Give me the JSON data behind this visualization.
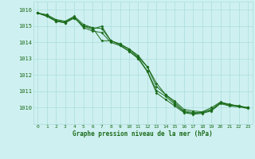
{
  "xlabel": "Graphe pression niveau de la mer (hPa)",
  "background_color": "#cff0f0",
  "grid_color": "#aadddd",
  "line_color": "#1a6b1a",
  "marker_color": "#1a6b1a",
  "x_labels": [
    "0",
    "1",
    "2",
    "3",
    "4",
    "5",
    "6",
    "7",
    "8",
    "9",
    "10",
    "11",
    "12",
    "13",
    "14",
    "15",
    "16",
    "17",
    "18",
    "19",
    "20",
    "21",
    "22",
    "23"
  ],
  "ylim": [
    1009.0,
    1016.5
  ],
  "xlim": [
    -0.5,
    23.5
  ],
  "yticks": [
    1010,
    1011,
    1012,
    1013,
    1014,
    1015,
    1016
  ],
  "series": [
    [
      1015.8,
      1015.6,
      1015.3,
      1015.2,
      1015.5,
      1015.0,
      1014.8,
      1015.0,
      1014.1,
      1013.9,
      1013.6,
      1013.1,
      1012.5,
      1011.3,
      1010.8,
      1010.3,
      1009.8,
      1009.7,
      1009.7,
      1009.9,
      1010.3,
      1010.2,
      1010.1,
      1010.0
    ],
    [
      1015.8,
      1015.7,
      1015.4,
      1015.3,
      1015.6,
      1015.1,
      1014.9,
      1014.1,
      1014.1,
      1013.9,
      1013.6,
      1013.2,
      1012.5,
      1011.5,
      1010.8,
      1010.4,
      1009.9,
      1009.8,
      1009.75,
      1010.0,
      1010.35,
      1010.2,
      1010.1,
      1010.0
    ],
    [
      1015.8,
      1015.6,
      1015.3,
      1015.2,
      1015.5,
      1015.0,
      1014.9,
      1014.85,
      1014.1,
      1013.85,
      1013.5,
      1013.05,
      1012.25,
      1011.05,
      1010.7,
      1010.2,
      1009.75,
      1009.65,
      1009.7,
      1009.85,
      1010.3,
      1010.15,
      1010.1,
      1010.0
    ],
    [
      1015.8,
      1015.65,
      1015.35,
      1015.25,
      1015.55,
      1014.9,
      1014.7,
      1014.6,
      1014.0,
      1013.8,
      1013.45,
      1013.0,
      1012.2,
      1010.9,
      1010.5,
      1010.1,
      1009.7,
      1009.6,
      1009.65,
      1009.8,
      1010.25,
      1010.1,
      1010.05,
      1009.95
    ]
  ]
}
